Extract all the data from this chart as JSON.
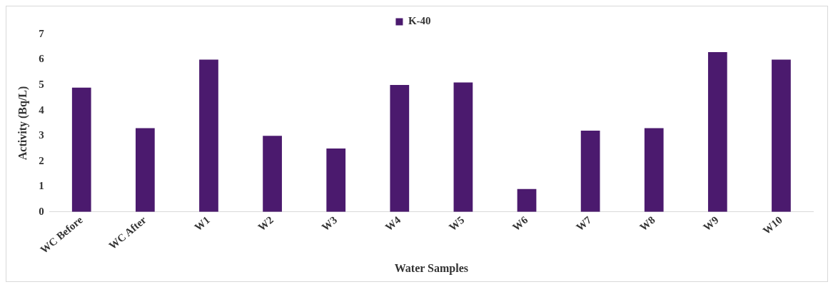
{
  "chart_data": {
    "type": "bar",
    "xlabel": "Water Samples",
    "ylabel": "Activity (Bq/L)",
    "categories": [
      "WC Before",
      "WC After",
      "W1",
      "W2",
      "W3",
      "W4",
      "W5",
      "W6",
      "W7",
      "W8",
      "W9",
      "W10"
    ],
    "series": [
      {
        "name": "K-40",
        "color": "#4b1a6e",
        "values": [
          4.9,
          3.3,
          6.0,
          3.0,
          2.5,
          5.0,
          5.1,
          0.9,
          3.2,
          3.3,
          6.3,
          6.0
        ]
      }
    ],
    "ylim": [
      0,
      7
    ],
    "yticks": [
      0,
      1,
      2,
      3,
      4,
      5,
      6,
      7
    ],
    "grid": false,
    "legend": "top"
  }
}
